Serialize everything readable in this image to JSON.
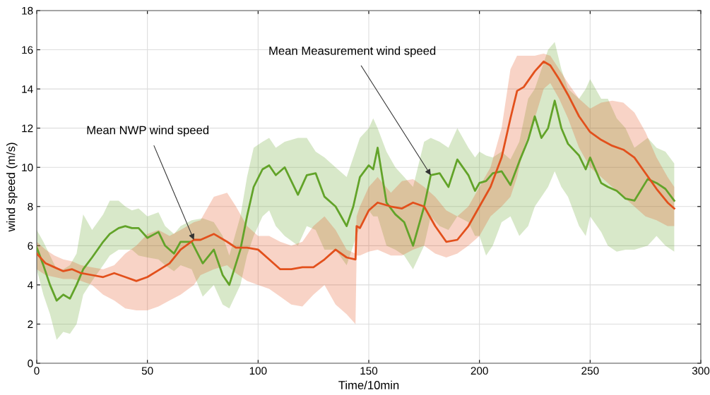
{
  "chart_data": {
    "type": "line",
    "xlabel": "Time/10min",
    "ylabel": "wind speed (m/s)",
    "xlim": [
      0,
      300
    ],
    "xticks": [
      0,
      50,
      100,
      150,
      200,
      250,
      300
    ],
    "ylim": [
      0,
      18
    ],
    "yticks": [
      0,
      2,
      4,
      6,
      8,
      10,
      12,
      14,
      16,
      18
    ],
    "grid": true,
    "line_style": "solid",
    "marker": "none",
    "annotations": [
      {
        "text": "Mean NWP wind speed",
        "x": 71,
        "y": 6.3
      },
      {
        "text": "Mean Measurement wind speed",
        "x": 178,
        "y": 9.6
      }
    ],
    "series": [
      {
        "color": "#62a329",
        "x": [
          0,
          3,
          6,
          9,
          12,
          15,
          18,
          21,
          25,
          30,
          33,
          37,
          40,
          43,
          46,
          50,
          55,
          58,
          62,
          65,
          70,
          75,
          80,
          84,
          87,
          92,
          95,
          98,
          102,
          105,
          108,
          112,
          118,
          122,
          126,
          130,
          135,
          140,
          143,
          146,
          150,
          152,
          154,
          158,
          162,
          166,
          170,
          175,
          178,
          182,
          186,
          190,
          195,
          198,
          200,
          203,
          206,
          210,
          214,
          218,
          222,
          225,
          228,
          231,
          234,
          237,
          240,
          245,
          248,
          250,
          255,
          258,
          262,
          266,
          270,
          276,
          280,
          284,
          288
        ],
        "values": [
          5.9,
          5.0,
          4.0,
          3.2,
          3.5,
          3.3,
          4.0,
          4.8,
          5.4,
          6.2,
          6.6,
          6.9,
          7.0,
          6.9,
          6.9,
          6.4,
          6.7,
          6.0,
          5.6,
          6.2,
          6.2,
          5.1,
          5.8,
          4.5,
          4.0,
          5.8,
          7.5,
          9.0,
          9.9,
          10.1,
          9.6,
          10.0,
          8.6,
          9.6,
          9.7,
          8.5,
          8.0,
          7.0,
          8.0,
          9.5,
          10.1,
          9.9,
          11.0,
          8.2,
          7.6,
          7.2,
          6.0,
          8.0,
          9.6,
          9.7,
          9.0,
          10.4,
          9.6,
          8.8,
          9.2,
          9.3,
          9.7,
          9.8,
          9.1,
          10.3,
          11.4,
          12.6,
          11.5,
          12.0,
          13.4,
          12.0,
          11.2,
          10.6,
          9.9,
          10.5,
          9.2,
          9.0,
          8.8,
          8.4,
          8.3,
          9.4,
          9.2,
          8.9,
          8.3
        ],
        "lower": [
          4.8,
          3.5,
          2.5,
          1.2,
          1.6,
          1.5,
          2.0,
          3.5,
          4.2,
          5.0,
          5.5,
          5.8,
          5.8,
          5.8,
          5.5,
          5.4,
          5.3,
          5.0,
          4.7,
          5.0,
          4.8,
          3.4,
          4.0,
          3.0,
          2.8,
          4.0,
          5.5,
          6.5,
          7.5,
          7.8,
          7.0,
          6.5,
          6.0,
          7.0,
          6.8,
          5.8,
          5.8,
          5.0,
          6.0,
          7.0,
          7.8,
          7.5,
          7.5,
          6.0,
          5.8,
          5.5,
          4.8,
          6.0,
          7.5,
          7.0,
          6.8,
          7.5,
          7.2,
          6.5,
          6.5,
          5.5,
          6.0,
          7.2,
          7.5,
          6.5,
          7.0,
          8.0,
          8.5,
          9.0,
          9.8,
          9.0,
          8.5,
          7.0,
          6.5,
          7.5,
          6.7,
          6.0,
          5.7,
          5.8,
          5.8,
          6.0,
          6.5,
          6.0,
          5.7
        ],
        "upper": [
          6.8,
          6.2,
          5.5,
          4.8,
          4.8,
          5.0,
          5.6,
          7.6,
          6.8,
          7.6,
          8.3,
          8.3,
          8.0,
          7.8,
          7.9,
          7.5,
          7.7,
          7.0,
          6.6,
          7.0,
          7.3,
          7.4,
          7.2,
          6.5,
          5.5,
          7.5,
          9.5,
          11.0,
          11.3,
          11.5,
          11.0,
          11.3,
          11.5,
          11.5,
          10.8,
          10.5,
          10.0,
          9.5,
          10.5,
          11.5,
          12.0,
          12.5,
          12.0,
          10.8,
          10.0,
          9.5,
          9.0,
          11.3,
          11.5,
          11.3,
          11.0,
          12.0,
          11.0,
          10.5,
          10.8,
          10.6,
          10.5,
          10.8,
          10.4,
          11.3,
          13.5,
          14.0,
          15.0,
          16.0,
          16.4,
          15.0,
          14.0,
          13.5,
          14.0,
          14.5,
          13.5,
          13.5,
          12.5,
          12.0,
          11.0,
          11.5,
          11.0,
          10.8,
          10.2
        ]
      },
      {
        "color": "#e2501c",
        "x": [
          0,
          4,
          8,
          12,
          16,
          20,
          25,
          30,
          35,
          40,
          45,
          50,
          55,
          60,
          65,
          71,
          74,
          80,
          86,
          90,
          95,
          100,
          105,
          110,
          115,
          120,
          125,
          130,
          135,
          140,
          144,
          144.5,
          146,
          150,
          154,
          160,
          165,
          170,
          175,
          180,
          185,
          190,
          195,
          200,
          205,
          210,
          214,
          217,
          220,
          225,
          229,
          232,
          236,
          240,
          245,
          250,
          255,
          260,
          265,
          270,
          275,
          280,
          285,
          288
        ],
        "values": [
          5.6,
          5.1,
          4.9,
          4.7,
          4.8,
          4.6,
          4.5,
          4.4,
          4.6,
          4.4,
          4.2,
          4.4,
          4.75,
          5.1,
          5.8,
          6.3,
          6.3,
          6.6,
          6.2,
          5.9,
          5.9,
          5.8,
          5.3,
          4.8,
          4.8,
          4.9,
          4.9,
          5.3,
          5.8,
          5.4,
          5.3,
          7.0,
          6.9,
          7.8,
          8.2,
          8.0,
          7.9,
          8.2,
          8.0,
          7.0,
          6.2,
          6.3,
          7.0,
          8.0,
          9.0,
          10.5,
          12.5,
          13.9,
          14.1,
          14.9,
          15.4,
          15.2,
          14.5,
          13.7,
          12.6,
          11.8,
          11.4,
          11.1,
          10.9,
          10.5,
          9.7,
          8.9,
          8.2,
          7.9
        ],
        "lower": [
          4.8,
          4.5,
          4.4,
          4.3,
          4.3,
          4.2,
          4.0,
          3.5,
          3.2,
          2.8,
          2.7,
          2.7,
          2.9,
          3.2,
          3.5,
          4.0,
          4.5,
          4.8,
          5.0,
          4.6,
          4.2,
          4.0,
          3.8,
          3.4,
          3.0,
          2.9,
          3.5,
          4.0,
          3.0,
          2.5,
          2.0,
          5.5,
          5.5,
          5.7,
          5.8,
          5.5,
          5.5,
          5.8,
          6.0,
          5.6,
          5.4,
          5.6,
          6.0,
          6.5,
          7.5,
          8.0,
          8.5,
          9.5,
          11.0,
          12.5,
          14.0,
          14.3,
          13.5,
          12.5,
          11.0,
          10.0,
          9.5,
          9.0,
          8.5,
          8.0,
          7.5,
          7.3,
          7.0,
          7.0
        ],
        "upper": [
          6.2,
          5.8,
          5.5,
          5.3,
          5.2,
          5.0,
          4.9,
          4.8,
          5.0,
          5.6,
          6.0,
          6.6,
          6.8,
          6.5,
          6.8,
          7.2,
          7.3,
          8.5,
          8.7,
          8.0,
          7.0,
          6.5,
          6.5,
          6.2,
          6.0,
          6.2,
          7.0,
          7.5,
          6.8,
          5.8,
          5.6,
          7.5,
          8.0,
          9.0,
          9.5,
          8.7,
          9.3,
          9.4,
          9.0,
          8.5,
          7.8,
          7.5,
          8.0,
          9.0,
          10.0,
          12.0,
          15.0,
          15.7,
          15.7,
          15.7,
          15.8,
          15.7,
          15.0,
          14.3,
          13.5,
          13.0,
          13.3,
          13.4,
          13.3,
          12.8,
          11.8,
          10.5,
          9.5,
          9.0
        ]
      }
    ]
  }
}
